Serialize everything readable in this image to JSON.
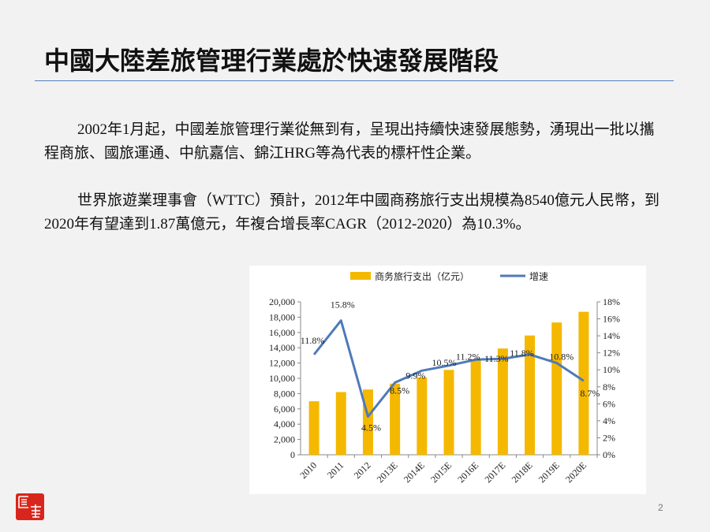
{
  "slide": {
    "title": "中國大陸差旅管理行業處於快速發展階段",
    "para1": "2002年1月起，中國差旅管理行業從無到有，呈現出持續快速發展態勢，湧現出一批以攜程商旅、國旅運通、中航嘉信、錦江HRG等為代表的標杆性企業。",
    "para2": "世界旅遊業理事會（WTTC）預計，2012年中國商務旅行支出規模為8540億元人民幣，到2020年有望達到1.87萬億元，年複合增長率CAGR（2012-2020）為10.3%。",
    "page_number": "2",
    "logo_text": "匯 謬"
  },
  "chart_data": {
    "type": "bar",
    "categories": [
      "2010",
      "2011",
      "2012",
      "2013E",
      "2014E",
      "2015E",
      "2016E",
      "2017E",
      "2018E",
      "2019E",
      "2020E"
    ],
    "series": [
      {
        "name": "商务旅行支出（亿元）",
        "type": "bar",
        "axis": "left",
        "color": "#f5b800",
        "values": [
          7000,
          8200,
          8540,
          9300,
          10100,
          11100,
          12500,
          13900,
          15600,
          17300,
          18700
        ]
      },
      {
        "name": "增速",
        "type": "line",
        "axis": "right",
        "color": "#4f7ab8",
        "values": [
          11.8,
          15.8,
          4.5,
          8.5,
          9.9,
          10.5,
          11.2,
          11.3,
          11.8,
          10.8,
          8.7
        ]
      }
    ],
    "data_labels": [
      "11.8%",
      "15.8%",
      "4.5%",
      "8.5%",
      "9.9%",
      "10.5%",
      "11.2%",
      "11.3%",
      "11.8%",
      "10.8%",
      "8.7%"
    ],
    "ylim_left": [
      0,
      20000
    ],
    "yticks_left": [
      "0",
      "2,000",
      "4,000",
      "6,000",
      "8,000",
      "10,000",
      "12,000",
      "14,000",
      "16,000",
      "18,000",
      "20,000"
    ],
    "ylim_right": [
      0,
      18
    ],
    "yticks_right": [
      "0%",
      "2%",
      "4%",
      "6%",
      "8%",
      "10%",
      "12%",
      "14%",
      "16%",
      "18%"
    ],
    "legend_position": "top",
    "grid": false
  }
}
